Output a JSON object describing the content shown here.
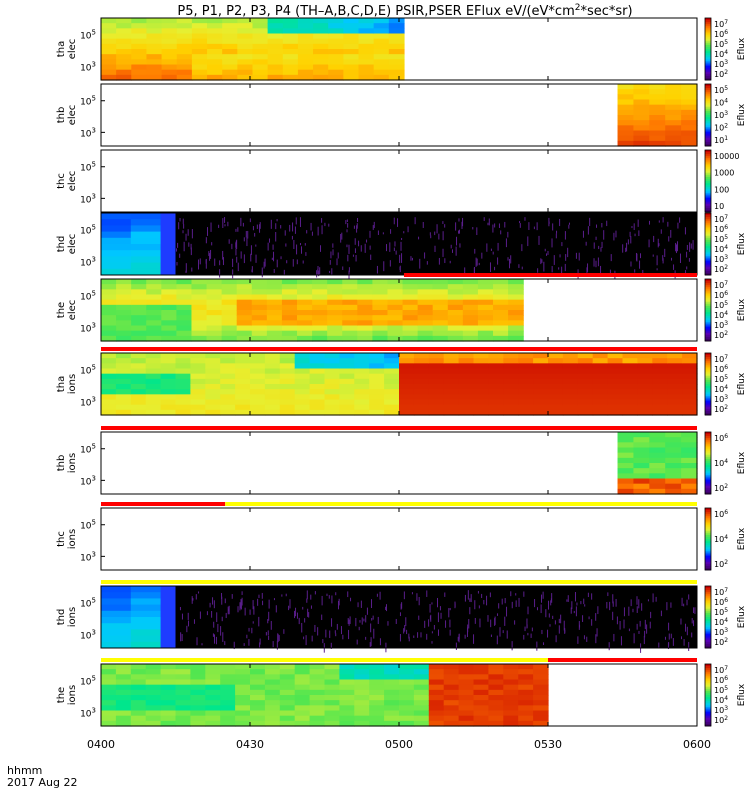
{
  "title": {
    "main": "P5, P1, P2, P3, P4 (TH–A,B,C,D,E) PSIR,PSER EFlux eV/(eV*cm",
    "sup": "2",
    "tail": "*sec*sr)"
  },
  "footer": {
    "time_format": "hhmm",
    "date": "2017 Aug 22"
  },
  "colors": {
    "background": "#ffffff",
    "frame": "#000000",
    "flag_red": "#ff0000",
    "flag_yellow": "#ffff00",
    "empty_black": "#000000",
    "noise_purple": "#5a1e8c"
  },
  "chart_data": {
    "type": "heatmap",
    "xlabel": "hhmm",
    "x_ticks": [
      "0400",
      "0430",
      "0500",
      "0530",
      "0600"
    ],
    "x_range_minutes": [
      0,
      120
    ],
    "colormap": "rainbow",
    "panels": [
      {
        "probe": "tha",
        "species": "elec",
        "ylabel": [
          "tha",
          "elec"
        ],
        "y_ticks": [
          {
            "base": "10",
            "exp": "5"
          },
          {
            "base": "10",
            "exp": "3"
          }
        ],
        "colorbar_ticks": [
          {
            "b": "10",
            "e": "7"
          },
          {
            "b": "10",
            "e": "6"
          },
          {
            "b": "10",
            "e": "5"
          },
          {
            "b": "10",
            "e": "4"
          },
          {
            "b": "10",
            "e": "3"
          },
          {
            "b": "10",
            "e": "2"
          }
        ],
        "colorbar_label": "Eflux",
        "data_window_min": [
          0,
          61
        ],
        "pattern": "tha_elec",
        "flags": []
      },
      {
        "probe": "thb",
        "species": "elec",
        "ylabel": [
          "thb",
          "elec"
        ],
        "y_ticks": [
          {
            "base": "10",
            "exp": "5"
          },
          {
            "base": "10",
            "exp": "3"
          }
        ],
        "colorbar_ticks": [
          {
            "b": "10",
            "e": "5"
          },
          {
            "b": "10",
            "e": "4"
          },
          {
            "b": "10",
            "e": "3"
          },
          {
            "b": "10",
            "e": "2"
          },
          {
            "b": "10",
            "e": "1"
          }
        ],
        "colorbar_label": "Eflux",
        "data_window_min": [
          104,
          120
        ],
        "pattern": "thb_elec",
        "flags": []
      },
      {
        "probe": "thc",
        "species": "elec",
        "ylabel": [
          "thc",
          "elec"
        ],
        "y_ticks": [
          {
            "base": "10",
            "exp": "5"
          },
          {
            "base": "10",
            "exp": "3"
          }
        ],
        "colorbar_ticks": [
          {
            "b": "10000",
            "e": ""
          },
          {
            "b": "1000",
            "e": ""
          },
          {
            "b": "100",
            "e": ""
          },
          {
            "b": "10",
            "e": ""
          }
        ],
        "colorbar_label": "",
        "data_window_min": [
          0,
          0
        ],
        "pattern": "empty",
        "flags": []
      },
      {
        "probe": "thd",
        "species": "elec",
        "ylabel": [
          "thd",
          "elec"
        ],
        "y_ticks": [
          {
            "base": "10",
            "exp": "5"
          },
          {
            "base": "10",
            "exp": "3"
          }
        ],
        "colorbar_ticks": [
          {
            "b": "10",
            "e": "7"
          },
          {
            "b": "10",
            "e": "6"
          },
          {
            "b": "10",
            "e": "5"
          },
          {
            "b": "10",
            "e": "4"
          },
          {
            "b": "10",
            "e": "3"
          },
          {
            "b": "10",
            "e": "2"
          }
        ],
        "colorbar_label": "Eflux",
        "data_window_min": [
          0,
          120
        ],
        "pattern": "thd_noise",
        "flags": []
      },
      {
        "probe": "the",
        "species": "elec",
        "ylabel": [
          "the",
          "elec"
        ],
        "y_ticks": [
          {
            "base": "10",
            "exp": "5"
          },
          {
            "base": "10",
            "exp": "3"
          }
        ],
        "colorbar_ticks": [
          {
            "b": "10",
            "e": "7"
          },
          {
            "b": "10",
            "e": "6"
          },
          {
            "b": "10",
            "e": "5"
          },
          {
            "b": "10",
            "e": "4"
          },
          {
            "b": "10",
            "e": "3"
          },
          {
            "b": "10",
            "e": "2"
          }
        ],
        "colorbar_label": "Eflux",
        "data_window_min": [
          0,
          85
        ],
        "pattern": "the_elec",
        "flags": [
          {
            "color": "red",
            "from_min": 61,
            "to_min": 120
          }
        ]
      },
      {
        "probe": "tha",
        "species": "ions",
        "ylabel": [
          "tha",
          "ions"
        ],
        "y_ticks": [
          {
            "base": "10",
            "exp": "5"
          },
          {
            "base": "10",
            "exp": "3"
          }
        ],
        "colorbar_ticks": [
          {
            "b": "10",
            "e": "7"
          },
          {
            "b": "10",
            "e": "6"
          },
          {
            "b": "10",
            "e": "5"
          },
          {
            "b": "10",
            "e": "4"
          },
          {
            "b": "10",
            "e": "3"
          },
          {
            "b": "10",
            "e": "2"
          }
        ],
        "colorbar_label": "Eflux",
        "data_window_min": [
          0,
          120
        ],
        "pattern": "tha_ions",
        "flags": [
          {
            "color": "red",
            "from_min": 0,
            "to_min": 120
          }
        ]
      },
      {
        "probe": "thb",
        "species": "ions",
        "ylabel": [
          "thb",
          "ions"
        ],
        "y_ticks": [
          {
            "base": "10",
            "exp": "5"
          },
          {
            "base": "10",
            "exp": "3"
          }
        ],
        "colorbar_ticks": [
          {
            "b": "10",
            "e": "6"
          },
          {
            "b": "10",
            "e": "4"
          },
          {
            "b": "10",
            "e": "2"
          }
        ],
        "colorbar_label": "Eflux",
        "data_window_min": [
          104,
          120
        ],
        "pattern": "thb_ions",
        "flags": [
          {
            "color": "red",
            "from_min": 0,
            "to_min": 120
          }
        ]
      },
      {
        "probe": "thc",
        "species": "ions",
        "ylabel": [
          "thc",
          "ions"
        ],
        "y_ticks": [
          {
            "base": "10",
            "exp": "5"
          },
          {
            "base": "10",
            "exp": "3"
          }
        ],
        "colorbar_ticks": [
          {
            "b": "10",
            "e": "6"
          },
          {
            "b": "10",
            "e": "4"
          },
          {
            "b": "10",
            "e": "2"
          }
        ],
        "colorbar_label": "Eflux",
        "data_window_min": [
          0,
          0
        ],
        "pattern": "empty",
        "flags": [
          {
            "color": "red",
            "from_min": 0,
            "to_min": 25
          },
          {
            "color": "yellow",
            "from_min": 25,
            "to_min": 120
          }
        ]
      },
      {
        "probe": "thd",
        "species": "ions",
        "ylabel": [
          "thd",
          "ions"
        ],
        "y_ticks": [
          {
            "base": "10",
            "exp": "5"
          },
          {
            "base": "10",
            "exp": "3"
          }
        ],
        "colorbar_ticks": [
          {
            "b": "10",
            "e": "7"
          },
          {
            "b": "10",
            "e": "6"
          },
          {
            "b": "10",
            "e": "5"
          },
          {
            "b": "10",
            "e": "4"
          },
          {
            "b": "10",
            "e": "3"
          },
          {
            "b": "10",
            "e": "2"
          }
        ],
        "colorbar_label": "Eflux",
        "data_window_min": [
          0,
          120
        ],
        "pattern": "thd_noise",
        "flags": [
          {
            "color": "yellow",
            "from_min": 0,
            "to_min": 120
          }
        ]
      },
      {
        "probe": "the",
        "species": "ions",
        "ylabel": [
          "the",
          "ions"
        ],
        "y_ticks": [
          {
            "base": "10",
            "exp": "5"
          },
          {
            "base": "10",
            "exp": "3"
          }
        ],
        "colorbar_ticks": [
          {
            "b": "10",
            "e": "7"
          },
          {
            "b": "10",
            "e": "6"
          },
          {
            "b": "10",
            "e": "5"
          },
          {
            "b": "10",
            "e": "4"
          },
          {
            "b": "10",
            "e": "3"
          },
          {
            "b": "10",
            "e": "2"
          }
        ],
        "colorbar_label": "Eflux",
        "data_window_min": [
          0,
          90
        ],
        "pattern": "the_ions",
        "flags": [
          {
            "color": "yellow",
            "from_min": 0,
            "to_min": 90
          },
          {
            "color": "red",
            "from_min": 90,
            "to_min": 120
          }
        ]
      }
    ]
  }
}
